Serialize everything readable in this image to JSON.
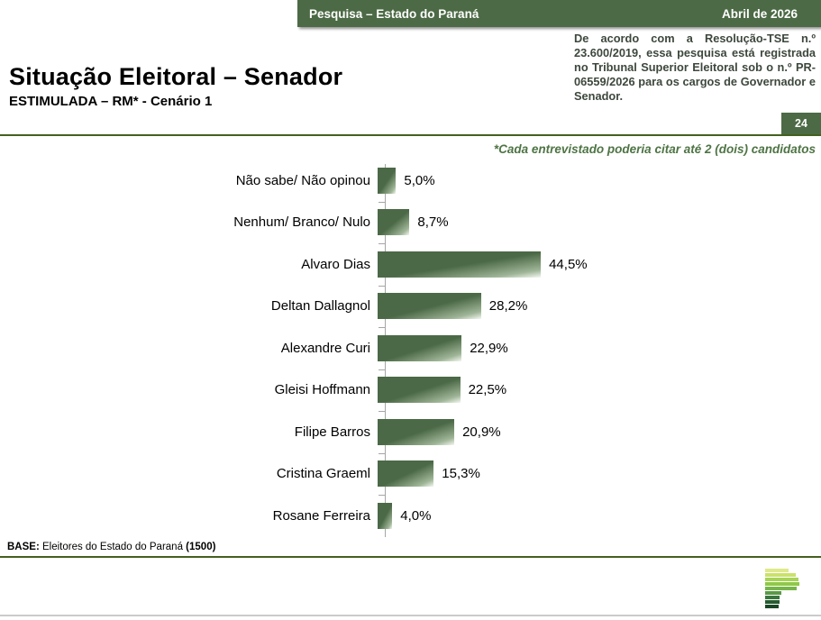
{
  "header": {
    "left": "Pesquisa – Estado do Paraná",
    "right": "Abril de 2026"
  },
  "legal_note": "De acordo com a Resolução-TSE n.º 23.600/2019, essa pesquisa está registrada no Tribunal Superior Eleitoral sob o n.º PR-06559/2026 para os cargos de Governador e Senador.",
  "page_number": "24",
  "footnote": "*Cada entrevistado poderia citar até 2 (dois) candidatos",
  "base_note": {
    "prefix": "BASE:",
    "text": " Eleitores do Estado do Paraná ",
    "suffix": "(1500)"
  },
  "chart_data": {
    "type": "bar",
    "orientation": "horizontal",
    "title": "Situação Eleitoral – Senador",
    "subtitle": "ESTIMULADA – RM* - Cenário 1",
    "categories": [
      "Não sabe/ Não opinou",
      "Nenhum/ Branco/ Nulo",
      "Alvaro Dias",
      "Deltan Dallagnol",
      "Alexandre Curi",
      "Gleisi Hoffmann",
      "Filipe Barros",
      "Cristina Graeml",
      "Rosane Ferreira"
    ],
    "values": [
      5.0,
      8.7,
      44.5,
      28.2,
      22.9,
      22.5,
      20.9,
      15.3,
      4.0
    ],
    "value_labels": [
      "5,0%",
      "8,7%",
      "44,5%",
      "28,2%",
      "22,9%",
      "22,5%",
      "20,9%",
      "15,3%",
      "4,0%"
    ],
    "grid": false,
    "legend": false,
    "bar_color": "#4b6946",
    "bar_gradient_light": "#f4f8f1"
  },
  "colors": {
    "header_green": "#4c6a45",
    "rule_green": "#44601f",
    "footnote_green": "#4e7444",
    "axis_gray": "#a6a6a6"
  },
  "logo": {
    "name": "parana-pesquisas-logo",
    "stripes": [
      {
        "color": "#dfe98c",
        "width_pct": 68
      },
      {
        "color": "#cbe169",
        "width_pct": 90
      },
      {
        "color": "#a7d455",
        "width_pct": 98
      },
      {
        "color": "#8fc848",
        "width_pct": 100
      },
      {
        "color": "#76b54a",
        "width_pct": 93
      },
      {
        "color": "#5a9a47",
        "width_pct": 48
      },
      {
        "color": "#39773c",
        "width_pct": 42
      },
      {
        "color": "#275c31",
        "width_pct": 42
      },
      {
        "color": "#194726",
        "width_pct": 40
      }
    ]
  }
}
